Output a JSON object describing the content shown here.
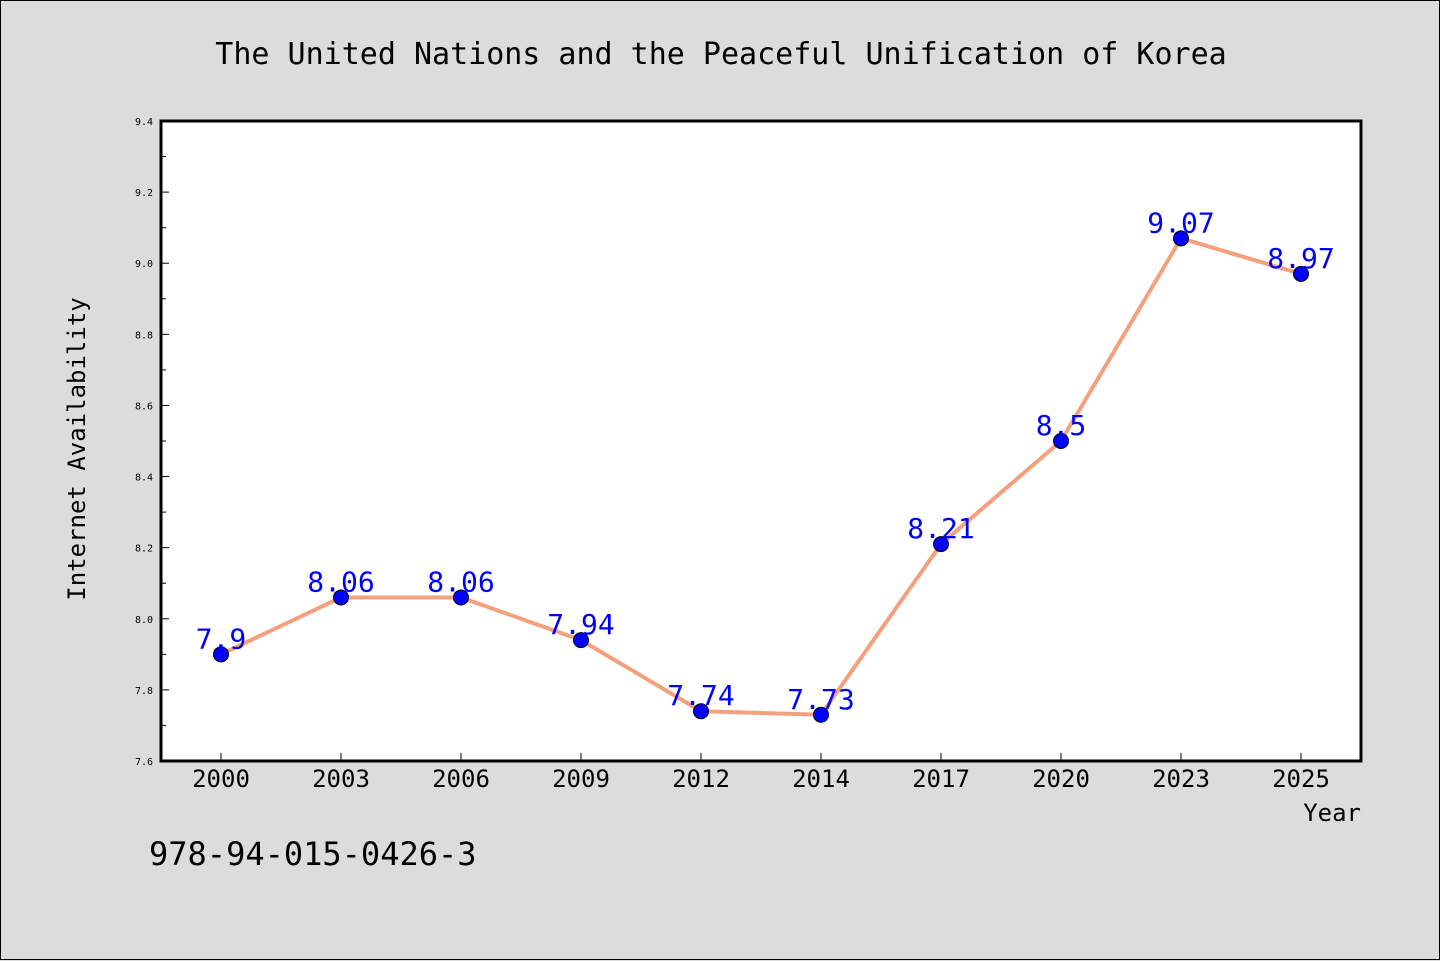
{
  "colors": {
    "background": "#dcdcdc",
    "plot_background": "#ffffff",
    "line": "#f4a07c",
    "marker": "#0000ff",
    "data_label": "#0000ff"
  },
  "isbn": "978-94-015-0426-3",
  "chart_data": {
    "type": "line",
    "title": "The United Nations and the Peaceful Unification of Korea",
    "xlabel": "Year",
    "ylabel": "Internet Availability",
    "categories": [
      "2000",
      "2003",
      "2006",
      "2009",
      "2012",
      "2014",
      "2017",
      "2020",
      "2023",
      "2025"
    ],
    "series": [
      {
        "values": [
          7.9,
          8.06,
          8.06,
          7.94,
          7.74,
          7.73,
          8.21,
          8.5,
          9.07,
          8.97
        ],
        "labels": [
          "7.9",
          "8.06",
          "8.06",
          "7.94",
          "7.74",
          "7.73",
          "8.21",
          "8.5",
          "9.07",
          "8.97"
        ]
      }
    ],
    "ylim": [
      7.6,
      9.4
    ],
    "yticks": [
      "7.6",
      "7.8",
      "8.0",
      "8.2",
      "8.4",
      "8.6",
      "8.8",
      "9.0",
      "9.2",
      "9.4"
    ],
    "grid": false,
    "legend": "none"
  }
}
